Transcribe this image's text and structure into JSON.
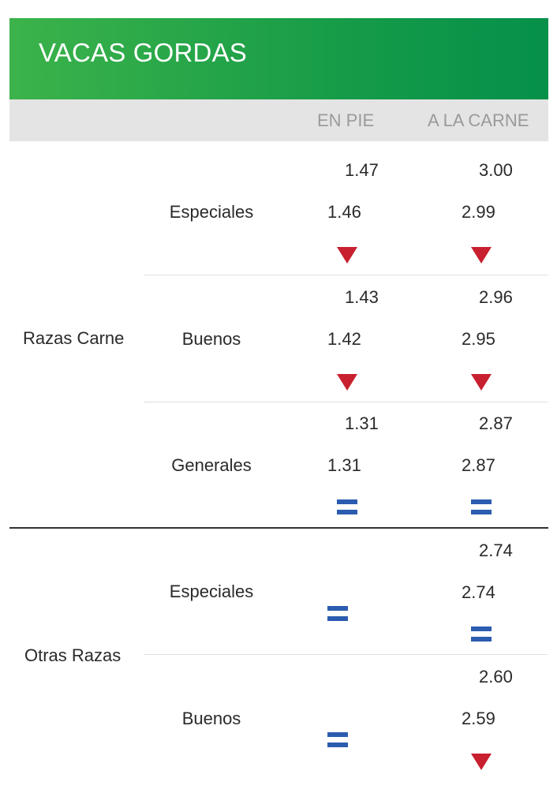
{
  "header": {
    "title": "VACAS GORDAS"
  },
  "columns": {
    "en_pie": "EN PIE",
    "a_la_carne": "A LA CARNE"
  },
  "groups": [
    {
      "label": "Razas Carne",
      "rows": [
        {
          "label": "Especiales",
          "pie_prev": "1.47",
          "pie_curr": "1.46",
          "pie_trend": "down",
          "carne_prev": "3.00",
          "carne_curr": "2.99",
          "carne_trend": "down"
        },
        {
          "label": "Buenos",
          "pie_prev": "1.43",
          "pie_curr": "1.42",
          "pie_trend": "down",
          "carne_prev": "2.96",
          "carne_curr": "2.95",
          "carne_trend": "down"
        },
        {
          "label": "Generales",
          "pie_prev": "1.31",
          "pie_curr": "1.31",
          "pie_trend": "equal",
          "carne_prev": "2.87",
          "carne_curr": "2.87",
          "carne_trend": "equal"
        }
      ]
    },
    {
      "label": "Otras Razas",
      "rows": [
        {
          "label": "Especiales",
          "pie_trend": "equal",
          "carne_prev": "2.74",
          "carne_curr": "2.74",
          "carne_trend": "equal"
        },
        {
          "label": "Buenos",
          "pie_trend": "equal",
          "carne_prev": "2.60",
          "carne_curr": "2.59",
          "carne_trend": "down"
        }
      ]
    }
  ],
  "colors": {
    "header_green": "#179c48",
    "down_red": "#c8202f",
    "equal_blue": "#2b5caf"
  },
  "icons": {
    "down": "down-triangle-icon",
    "equal": "equal-icon"
  }
}
